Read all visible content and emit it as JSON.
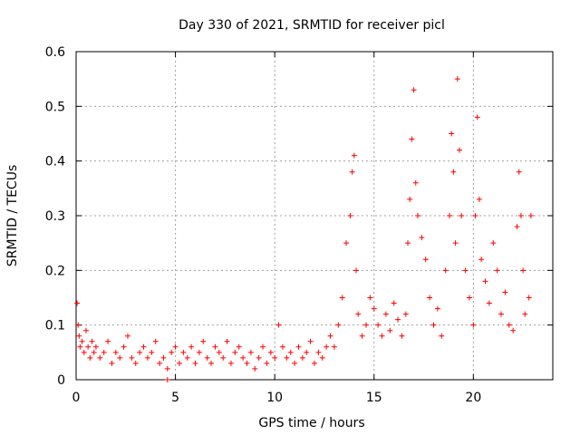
{
  "chart_data": {
    "type": "scatter",
    "title": "Day 330 of 2021, SRMTID for receiver picl",
    "xlabel": "GPS time / hours",
    "ylabel": "SRMTID / TECUs",
    "xlim": [
      0,
      24
    ],
    "ylim": [
      0,
      0.6
    ],
    "x_ticks": [
      0,
      5,
      10,
      15,
      20
    ],
    "y_ticks": [
      0,
      0.1,
      0.2,
      0.3,
      0.4,
      0.5,
      0.6
    ],
    "x_tick_labels": [
      "0",
      "5",
      "10",
      "15",
      "20"
    ],
    "y_tick_labels": [
      "0",
      "0.1",
      "0.2",
      "0.3",
      "0.4",
      "0.5",
      "0.6"
    ],
    "grid": true,
    "marker": "plus",
    "color": "#ff0000",
    "series": [
      {
        "name": "SRMTID",
        "x": [
          0.05,
          0.1,
          0.15,
          0.2,
          0.3,
          0.4,
          0.5,
          0.6,
          0.7,
          0.8,
          0.9,
          1.0,
          1.2,
          1.4,
          1.6,
          1.8,
          2.0,
          2.2,
          2.4,
          2.6,
          2.8,
          3.0,
          3.2,
          3.4,
          3.6,
          3.8,
          4.0,
          4.2,
          4.4,
          4.6,
          4.8,
          5.0,
          5.2,
          5.4,
          5.6,
          5.8,
          6.0,
          6.2,
          6.4,
          6.6,
          6.8,
          7.0,
          7.2,
          7.4,
          7.6,
          7.8,
          8.0,
          8.2,
          8.4,
          8.6,
          8.8,
          9.0,
          9.2,
          9.4,
          9.6,
          9.8,
          10.0,
          10.2,
          10.4,
          10.6,
          10.8,
          11.0,
          11.2,
          11.4,
          11.6,
          11.8,
          12.0,
          12.2,
          12.4,
          12.6,
          12.8,
          13.0,
          13.2,
          13.4,
          13.6,
          13.8,
          13.9,
          14.0,
          14.1,
          14.2,
          14.4,
          14.6,
          14.8,
          15.0,
          15.2,
          15.4,
          15.6,
          15.8,
          16.0,
          16.2,
          16.4,
          16.6,
          16.7,
          16.8,
          16.9,
          17.0,
          17.1,
          17.2,
          17.4,
          17.6,
          17.8,
          18.0,
          18.2,
          18.4,
          18.6,
          18.8,
          18.9,
          19.0,
          19.1,
          19.2,
          19.3,
          19.4,
          19.6,
          19.8,
          20.0,
          20.1,
          20.2,
          20.3,
          20.4,
          20.6,
          20.8,
          21.0,
          21.2,
          21.4,
          21.6,
          21.8,
          22.0,
          22.2,
          22.3,
          22.4,
          22.5,
          22.6,
          22.8,
          22.9,
          4.6
        ],
        "y": [
          0.14,
          0.1,
          0.08,
          0.06,
          0.07,
          0.05,
          0.09,
          0.06,
          0.04,
          0.07,
          0.05,
          0.06,
          0.04,
          0.05,
          0.07,
          0.03,
          0.05,
          0.04,
          0.06,
          0.08,
          0.04,
          0.03,
          0.05,
          0.06,
          0.04,
          0.05,
          0.07,
          0.03,
          0.04,
          0.02,
          0.05,
          0.06,
          0.03,
          0.05,
          0.04,
          0.06,
          0.03,
          0.05,
          0.07,
          0.04,
          0.03,
          0.06,
          0.05,
          0.04,
          0.07,
          0.03,
          0.05,
          0.06,
          0.04,
          0.03,
          0.05,
          0.02,
          0.04,
          0.06,
          0.03,
          0.05,
          0.04,
          0.1,
          0.06,
          0.04,
          0.05,
          0.03,
          0.06,
          0.04,
          0.05,
          0.07,
          0.03,
          0.05,
          0.04,
          0.06,
          0.08,
          0.06,
          0.1,
          0.15,
          0.25,
          0.3,
          0.38,
          0.41,
          0.2,
          0.12,
          0.08,
          0.1,
          0.15,
          0.13,
          0.1,
          0.08,
          0.12,
          0.09,
          0.14,
          0.11,
          0.08,
          0.12,
          0.25,
          0.33,
          0.44,
          0.53,
          0.36,
          0.3,
          0.26,
          0.22,
          0.15,
          0.1,
          0.13,
          0.08,
          0.2,
          0.3,
          0.45,
          0.38,
          0.25,
          0.55,
          0.42,
          0.3,
          0.2,
          0.15,
          0.1,
          0.3,
          0.48,
          0.33,
          0.22,
          0.18,
          0.14,
          0.25,
          0.2,
          0.12,
          0.16,
          0.1,
          0.09,
          0.28,
          0.38,
          0.3,
          0.2,
          0.12,
          0.15,
          0.3,
          0.0
        ]
      }
    ]
  }
}
